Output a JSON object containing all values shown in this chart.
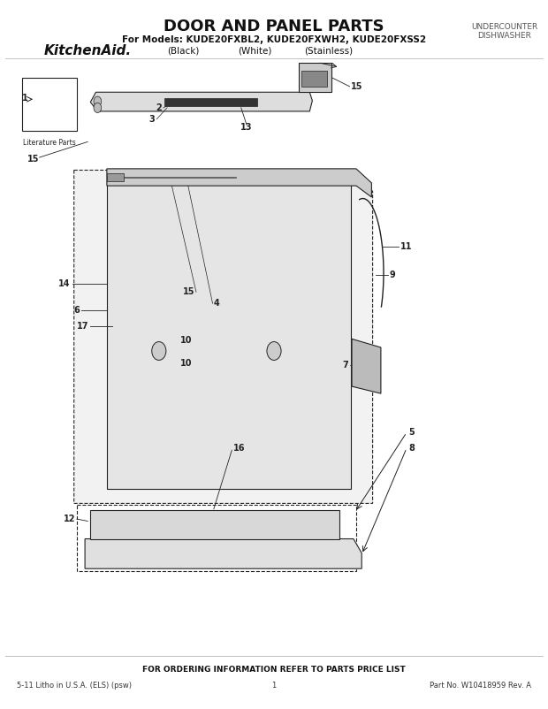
{
  "title": "DOOR AND PANEL PARTS",
  "subtitle": "For Models: KUDE20FXBL2, KUDE20FXWH2, KUDE20FXSS2",
  "subtitle2_black": "(Black)",
  "subtitle2_white": "(White)",
  "subtitle2_stainless": "(Stainless)",
  "top_right_line1": "UNDERCOUNTER",
  "top_right_line2": "DISHWASHER",
  "brand": "KitchenAid.",
  "footer_left": "5-11 Litho in U.S.A. (ELS) (psw)",
  "footer_center": "1",
  "footer_right": "Part No. W10418959 Rev. A",
  "footer_top": "FOR ORDERING INFORMATION REFER TO PARTS PRICE LIST",
  "bg_color": "#ffffff",
  "line_color": "#000000",
  "diagram_color": "#222222",
  "label_literature": "Literature Parts"
}
